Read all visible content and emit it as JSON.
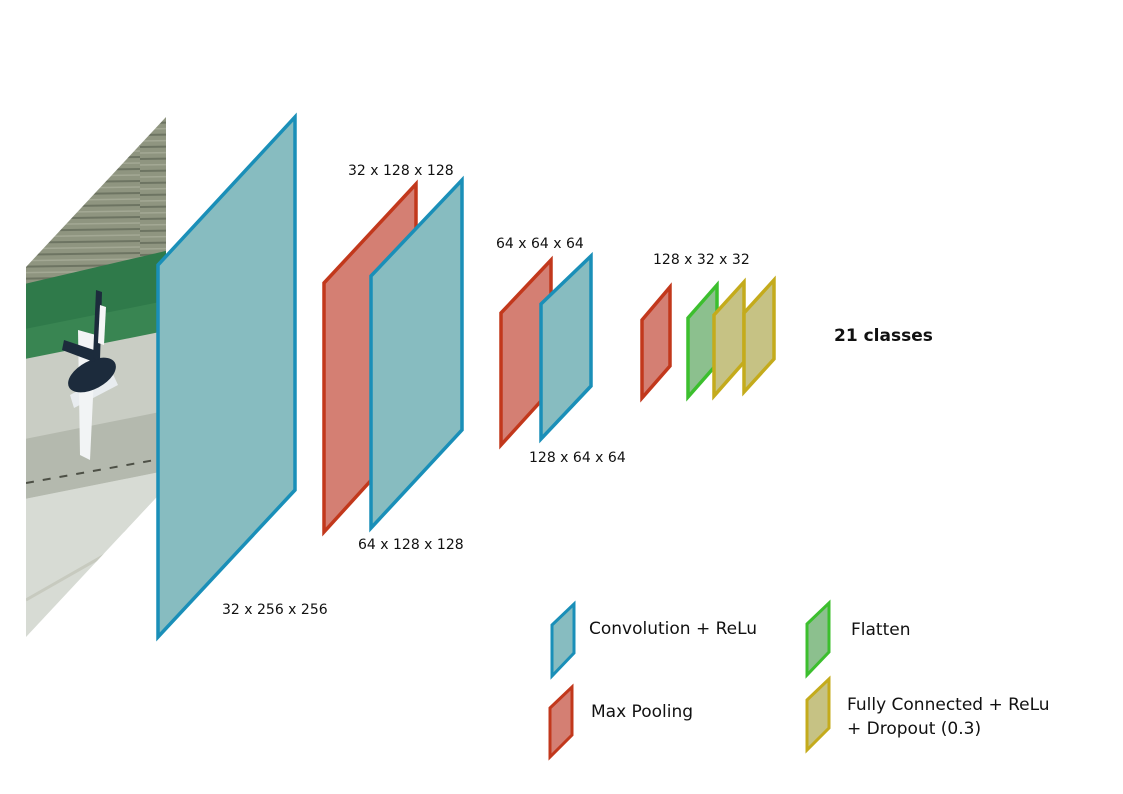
{
  "colors": {
    "conv_fill": "#87bcc0",
    "conv_stroke": "#1a8fb8",
    "pool_fill": "#d47f73",
    "pool_stroke": "#c2381c",
    "flatten_fill": "#8cc08e",
    "flatten_stroke": "#3cbf2e",
    "fc_fill": "#c6c284",
    "fc_stroke": "#c4ab1c"
  },
  "dimension_labels": {
    "input_conv": "32 x 256 x 256",
    "pool1": "32 x 128 x 128",
    "conv2": "64 x 128 x 128",
    "pool2": "64 x 64 x 64",
    "conv3": "128 x 64 x 64",
    "pool3": "128 x 32 x 32"
  },
  "output_label": "21 classes",
  "legend": {
    "conv": "Convolution + ReLu",
    "pool": "Max Pooling",
    "flatten": "Flatten",
    "fc_line1": "Fully Connected + ReLu",
    "fc_line2": "+ Dropout (0.3)"
  }
}
